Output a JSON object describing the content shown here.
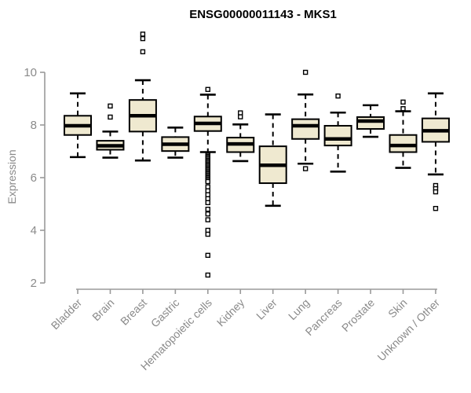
{
  "page": {
    "background": "#ffffff"
  },
  "chart_data": {
    "type": "boxplot",
    "title": "ENSG00000011143 - MKS1",
    "ylabel": "Expression",
    "xlabel": "",
    "yticks": [
      2,
      4,
      6,
      8,
      10
    ],
    "ylim": [
      1.9,
      11.7
    ],
    "grid": false,
    "legend": "none",
    "colors": {
      "box_fill": "#EFE9D0",
      "box_stroke": "#000000",
      "median": "#000000",
      "whisker": "#000000",
      "axis": "#9a9a9a",
      "tick_label": "#8a8a8a",
      "title": "#000000",
      "outlier_fill": "#ffffff"
    },
    "categories": [
      "Bladder",
      "Brain",
      "Breast",
      "Gastric",
      "Hematopoietic cells",
      "Kidney",
      "Liver",
      "Lung",
      "Pancreas",
      "Prostate",
      "Skin",
      "Unknown / Other"
    ],
    "boxes": [
      {
        "category": "Bladder",
        "low": 6.78,
        "q1": 7.62,
        "median": 7.97,
        "q3": 8.35,
        "high": 9.2,
        "outliers": []
      },
      {
        "category": "Brain",
        "low": 6.76,
        "q1": 7.06,
        "median": 7.21,
        "q3": 7.4,
        "high": 7.75,
        "outliers": [
          8.72,
          8.3
        ]
      },
      {
        "category": "Breast",
        "low": 6.65,
        "q1": 7.75,
        "median": 8.35,
        "q3": 8.95,
        "high": 9.7,
        "outliers": [
          11.45,
          11.28,
          10.78
        ]
      },
      {
        "category": "Gastric",
        "low": 6.76,
        "q1": 7.01,
        "median": 7.27,
        "q3": 7.54,
        "high": 7.9,
        "outliers": []
      },
      {
        "category": "Hematopoietic cells",
        "low": 6.97,
        "q1": 7.77,
        "median": 8.06,
        "q3": 8.32,
        "high": 9.15,
        "outliers": [
          9.35,
          6.85,
          6.8,
          6.75,
          6.7,
          6.65,
          6.6,
          6.55,
          6.5,
          6.45,
          6.4,
          6.35,
          6.3,
          6.25,
          6.2,
          6.15,
          6.1,
          6.05,
          6.0,
          5.95,
          5.9,
          5.85,
          5.65,
          5.5,
          5.35,
          5.2,
          5.05,
          4.8,
          4.62,
          4.4,
          4.0,
          3.85,
          3.05,
          2.3
        ]
      },
      {
        "category": "Kidney",
        "low": 6.63,
        "q1": 6.97,
        "median": 7.28,
        "q3": 7.52,
        "high": 8.02,
        "outliers": [
          8.46,
          8.31
        ]
      },
      {
        "category": "Liver",
        "low": 4.93,
        "q1": 5.79,
        "median": 6.47,
        "q3": 7.19,
        "high": 8.4,
        "outliers": []
      },
      {
        "category": "Lung",
        "low": 6.53,
        "q1": 7.47,
        "median": 7.97,
        "q3": 8.22,
        "high": 9.16,
        "outliers": [
          10.0,
          6.34
        ]
      },
      {
        "category": "Pancreas",
        "low": 6.23,
        "q1": 7.22,
        "median": 7.47,
        "q3": 7.97,
        "high": 8.47,
        "outliers": [
          9.1
        ]
      },
      {
        "category": "Prostate",
        "low": 7.55,
        "q1": 7.85,
        "median": 8.15,
        "q3": 8.3,
        "high": 8.75,
        "outliers": []
      },
      {
        "category": "Skin",
        "low": 6.37,
        "q1": 6.97,
        "median": 7.22,
        "q3": 7.62,
        "high": 8.52,
        "outliers": [
          8.87,
          8.62
        ]
      },
      {
        "category": "Unknown / Other",
        "low": 6.12,
        "q1": 7.36,
        "median": 7.78,
        "q3": 8.25,
        "high": 9.2,
        "outliers": [
          5.7,
          5.58,
          5.46,
          4.83
        ]
      }
    ]
  }
}
